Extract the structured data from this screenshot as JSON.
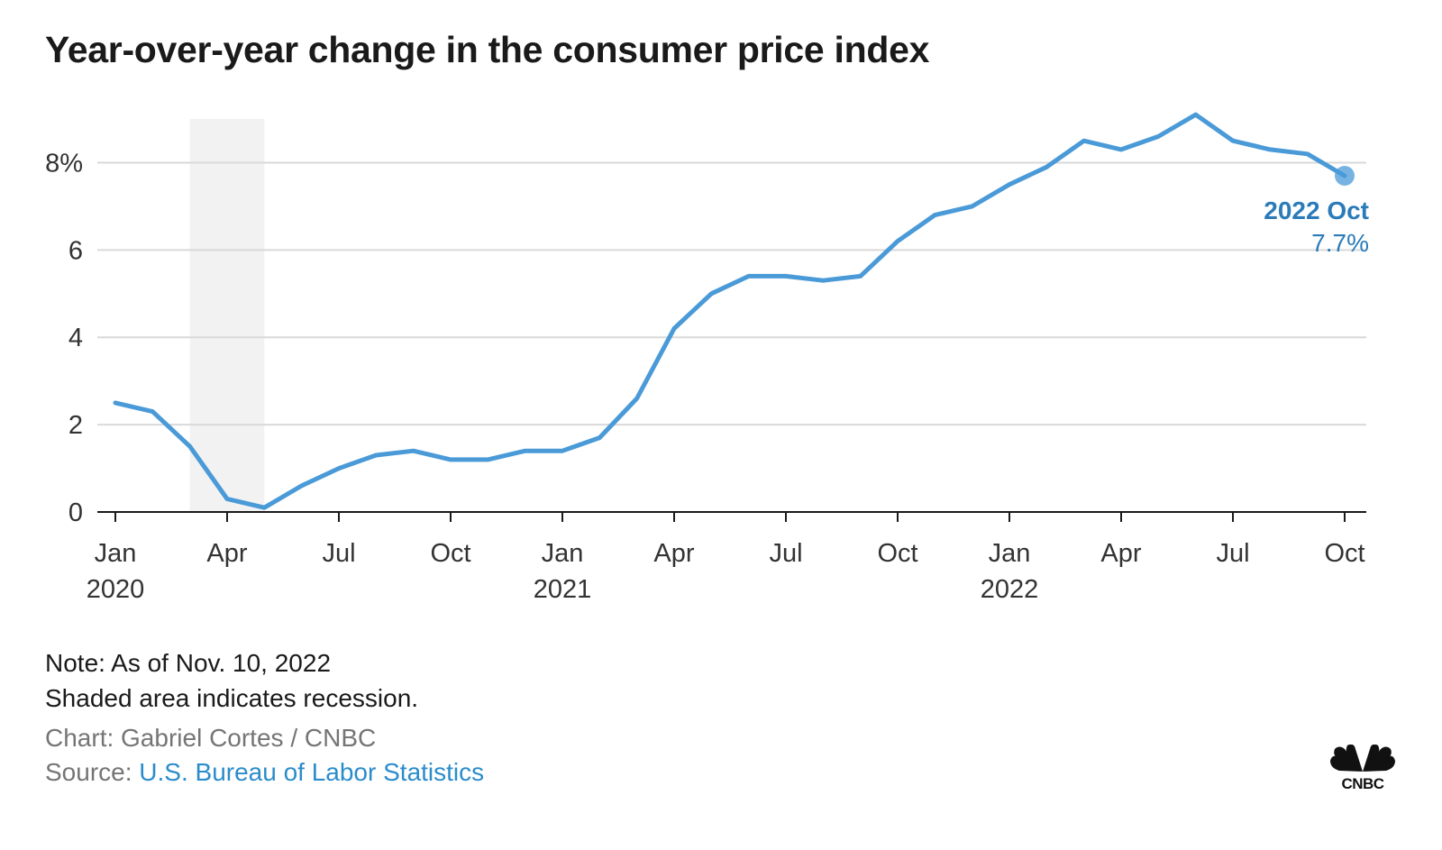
{
  "chart_data": {
    "type": "line",
    "title": "Year-over-year change in the consumer price index",
    "xlabel": "",
    "ylabel": "",
    "ylim": [
      0,
      9
    ],
    "grid": true,
    "y_ticks": [
      0,
      2,
      4,
      6,
      8
    ],
    "y_tick_labels": [
      "0",
      "2",
      "4",
      "6",
      "8%"
    ],
    "x_ticks": [
      {
        "date": "2020-01",
        "label": "Jan",
        "year": "2020"
      },
      {
        "date": "2020-04",
        "label": "Apr",
        "year": ""
      },
      {
        "date": "2020-07",
        "label": "Jul",
        "year": ""
      },
      {
        "date": "2020-10",
        "label": "Oct",
        "year": ""
      },
      {
        "date": "2021-01",
        "label": "Jan",
        "year": "2021"
      },
      {
        "date": "2021-04",
        "label": "Apr",
        "year": ""
      },
      {
        "date": "2021-07",
        "label": "Jul",
        "year": ""
      },
      {
        "date": "2021-10",
        "label": "Oct",
        "year": ""
      },
      {
        "date": "2022-01",
        "label": "Jan",
        "year": "2022"
      },
      {
        "date": "2022-04",
        "label": "Apr",
        "year": ""
      },
      {
        "date": "2022-07",
        "label": "Jul",
        "year": ""
      },
      {
        "date": "2022-10",
        "label": "Oct",
        "year": ""
      }
    ],
    "recession": {
      "start": "2020-03",
      "end": "2020-05"
    },
    "x": [
      "2020-01",
      "2020-02",
      "2020-03",
      "2020-04",
      "2020-05",
      "2020-06",
      "2020-07",
      "2020-08",
      "2020-09",
      "2020-10",
      "2020-11",
      "2020-12",
      "2021-01",
      "2021-02",
      "2021-03",
      "2021-04",
      "2021-05",
      "2021-06",
      "2021-07",
      "2021-08",
      "2021-09",
      "2021-10",
      "2021-11",
      "2021-12",
      "2022-01",
      "2022-02",
      "2022-03",
      "2022-04",
      "2022-05",
      "2022-06",
      "2022-07",
      "2022-08",
      "2022-09",
      "2022-10"
    ],
    "series": [
      {
        "values": [
          2.5,
          2.3,
          1.5,
          0.3,
          0.1,
          0.6,
          1.0,
          1.3,
          1.4,
          1.2,
          1.2,
          1.4,
          1.4,
          1.7,
          2.6,
          4.2,
          5.0,
          5.4,
          5.4,
          5.3,
          5.4,
          6.2,
          6.8,
          7.0,
          7.5,
          7.9,
          8.5,
          8.3,
          8.6,
          9.1,
          8.5,
          8.3,
          8.2,
          7.7
        ],
        "color": "#4a9ad8"
      }
    ],
    "annotation": {
      "label": "2022 Oct",
      "value": "7.7%",
      "date": "2022-10"
    },
    "colors": {
      "line": "#4a9ad8",
      "annotation": "#2b7bb9",
      "grid": "#d9d9d9",
      "recession": "#f2f2f2",
      "axis": "#1a1a1a"
    }
  },
  "footer": {
    "note_line1": "Note: As of Nov. 10, 2022",
    "note_line2": "Shaded area indicates recession.",
    "chart_credit": "Chart: Gabriel Cortes / CNBC",
    "source_prefix": "Source: ",
    "source_link": "U.S. Bureau of Labor Statistics"
  },
  "logo": {
    "text": "CNBC",
    "icon": "cnbc-peacock-icon"
  }
}
